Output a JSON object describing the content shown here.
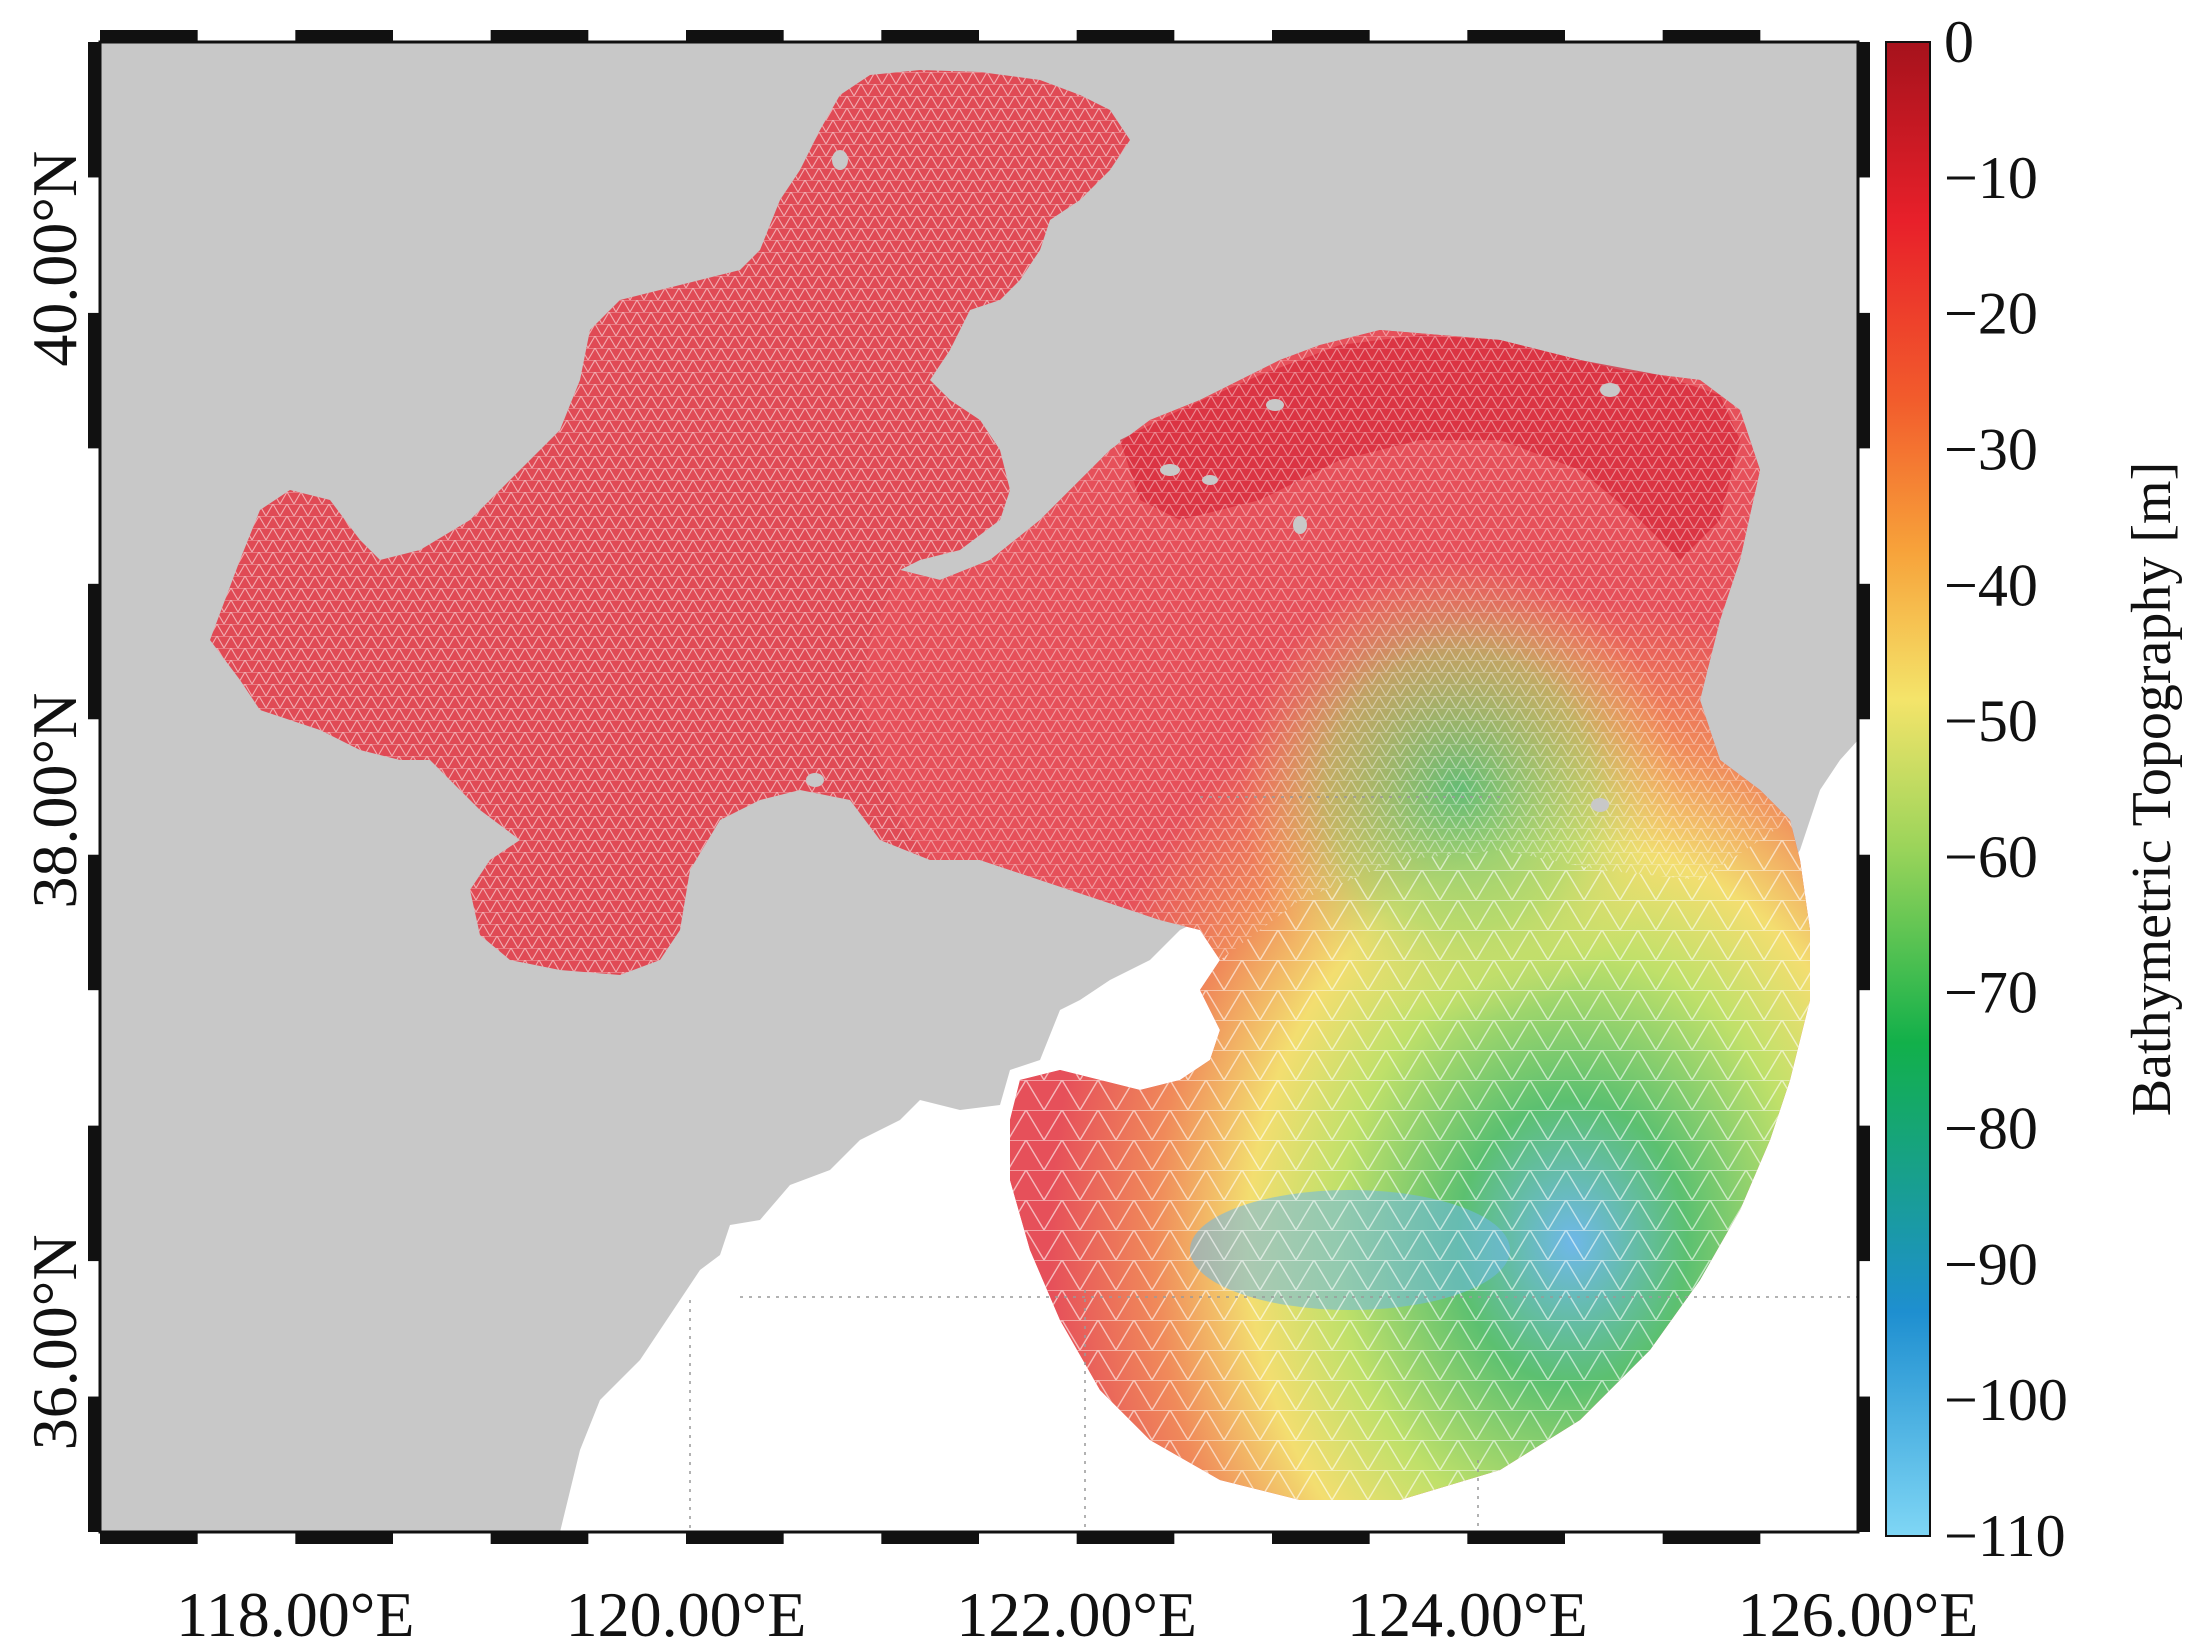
{
  "map": {
    "lat_labels": [
      "40.00°N",
      "38.00°N",
      "36.00°N"
    ],
    "lon_labels": [
      "118.00°E",
      "120.00°E",
      "122.00°E",
      "124.00°E",
      "126.00°E"
    ],
    "lon_values": [
      118,
      120,
      122,
      124,
      126
    ],
    "lat_values": [
      40,
      38,
      36
    ],
    "extent": {
      "lon": [
        117.0,
        126.0
      ],
      "lat": [
        35.3,
        40.8
      ]
    },
    "colors": {
      "land": "#c8c8c8",
      "frame": "#111111",
      "water_background": "#ffffff"
    }
  },
  "colorbar": {
    "title": "Bathymetric Topography [m]",
    "ticks": [
      "0",
      "−10",
      "−20",
      "−30",
      "−40",
      "−50",
      "−60",
      "−70",
      "−80",
      "−90",
      "−100",
      "−110"
    ],
    "range": [
      -110,
      0
    ],
    "stops": [
      "#7fd6f5",
      "#1e8fd0",
      "#12b04a",
      "#9ad45a",
      "#f4e46a",
      "#f7a23a",
      "#f25c2c",
      "#e8202a",
      "#a6121c"
    ]
  }
}
